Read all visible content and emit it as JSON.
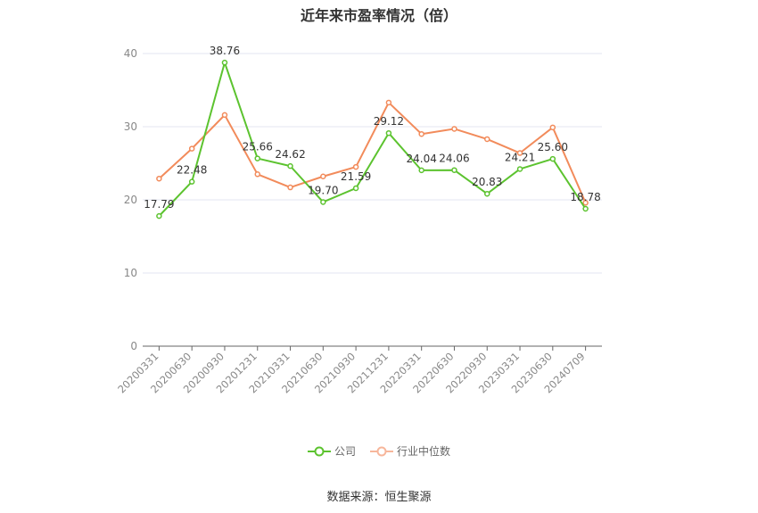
{
  "chart_data": {
    "type": "line",
    "title": "近年来市盈率情况（倍）",
    "categories": [
      "20200331",
      "20200630",
      "20200930",
      "20201231",
      "20210331",
      "20210630",
      "20210930",
      "20211231",
      "20220331",
      "20220630",
      "20220930",
      "20230331",
      "20230630",
      "20240709"
    ],
    "ylim": [
      0,
      40
    ],
    "yticks": [
      0,
      10,
      20,
      30,
      40
    ],
    "grid": true,
    "legend_position": "bottom",
    "series": [
      {
        "name": "公司",
        "color": "#5cc32f",
        "values": [
          17.79,
          22.48,
          38.76,
          25.66,
          24.62,
          19.7,
          21.59,
          29.12,
          24.04,
          24.06,
          20.83,
          24.21,
          25.6,
          18.78
        ],
        "labels": [
          "17.79",
          "22.48",
          "38.76",
          "25.66",
          "24.62",
          "19.70",
          "21.59",
          "29.12",
          "24.04",
          "24.06",
          "20.83",
          "24.21",
          "25.60",
          "18.78"
        ]
      },
      {
        "name": "行业中位数",
        "color": "#f28b5b",
        "values": [
          22.9,
          27.0,
          31.6,
          23.5,
          21.7,
          23.2,
          24.5,
          33.3,
          29.0,
          29.7,
          28.3,
          26.4,
          29.9,
          19.6
        ]
      }
    ]
  },
  "source": "数据来源：恒生聚源"
}
